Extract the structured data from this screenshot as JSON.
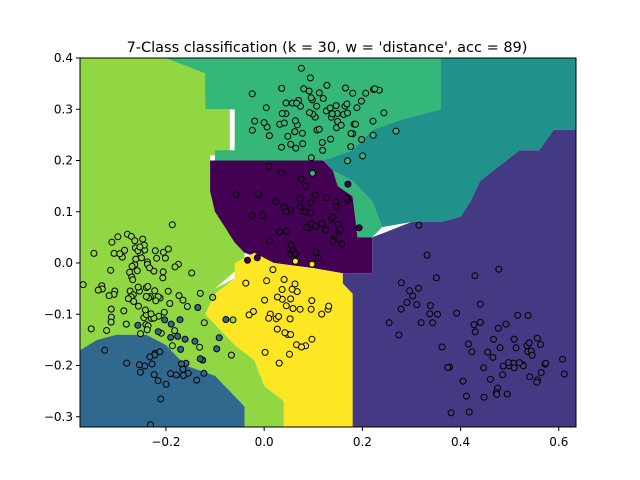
{
  "chart_data": {
    "type": "scatter",
    "title": "7-Class classification (k = 30, w = 'distance', acc = 89)",
    "xlabel": "",
    "ylabel": "",
    "xlim": [
      -0.375,
      0.635
    ],
    "ylim": [
      -0.32,
      0.4
    ],
    "x_ticks": [
      -0.2,
      0.0,
      0.2,
      0.4,
      0.6
    ],
    "x_tick_labels": [
      "−0.2",
      "0.0",
      "0.2",
      "0.4",
      "0.6"
    ],
    "y_ticks": [
      -0.3,
      -0.2,
      -0.1,
      0.0,
      0.1,
      0.2,
      0.3,
      0.4
    ],
    "y_tick_labels": [
      "−0.3",
      "−0.2",
      "−0.1",
      "0.0",
      "0.1",
      "0.2",
      "0.3",
      "0.4"
    ],
    "grid": false,
    "class_colors": [
      "#440154",
      "#443983",
      "#31688e",
      "#21918c",
      "#35b779",
      "#90d743",
      "#fde725"
    ],
    "decision_regions": [
      {
        "class": 5,
        "polygon": [
          [
            -0.375,
            0.4
          ],
          [
            0.01,
            0.4
          ],
          [
            0.01,
            0.34
          ],
          [
            -0.1,
            0.34
          ],
          [
            -0.1,
            0.32
          ],
          [
            -0.17,
            0.32
          ],
          [
            -0.2,
            0.38
          ],
          [
            -0.12,
            0.38
          ],
          [
            -0.12,
            0.3
          ],
          [
            -0.07,
            0.3
          ],
          [
            -0.07,
            0.21
          ],
          [
            -0.11,
            0.21
          ],
          [
            -0.11,
            0.14
          ],
          [
            -0.07,
            0.14
          ],
          [
            -0.07,
            0.07
          ],
          [
            -0.06,
            0.07
          ],
          [
            -0.06,
            0.04
          ],
          [
            -0.04,
            0.04
          ],
          [
            -0.04,
            0.0
          ],
          [
            -0.1,
            -0.05
          ],
          [
            -0.2,
            -0.07
          ],
          [
            -0.24,
            -0.12
          ],
          [
            -0.34,
            -0.16
          ],
          [
            -0.375,
            -0.16
          ]
        ]
      },
      {
        "class": 4,
        "polygon": [
          [
            -0.2,
            0.4
          ],
          [
            0.36,
            0.4
          ],
          [
            0.36,
            0.3
          ],
          [
            0.28,
            0.28
          ],
          [
            0.22,
            0.26
          ],
          [
            0.18,
            0.22
          ],
          [
            0.12,
            0.2
          ],
          [
            -0.1,
            0.2
          ],
          [
            -0.1,
            0.22
          ],
          [
            -0.06,
            0.22
          ],
          [
            -0.06,
            0.3
          ],
          [
            -0.12,
            0.3
          ],
          [
            -0.12,
            0.37
          ]
        ]
      },
      {
        "class": 3,
        "polygon": [
          [
            0.36,
            0.4
          ],
          [
            0.635,
            0.4
          ],
          [
            0.635,
            0.26
          ],
          [
            0.59,
            0.26
          ],
          [
            0.56,
            0.22
          ],
          [
            0.52,
            0.22
          ],
          [
            0.44,
            0.16
          ],
          [
            0.42,
            0.12
          ],
          [
            0.4,
            0.09
          ],
          [
            0.36,
            0.08
          ],
          [
            0.3,
            0.08
          ],
          [
            0.24,
            0.07
          ],
          [
            0.22,
            0.12
          ],
          [
            0.18,
            0.16
          ],
          [
            0.14,
            0.18
          ],
          [
            0.12,
            0.2
          ],
          [
            0.18,
            0.22
          ],
          [
            0.22,
            0.26
          ],
          [
            0.28,
            0.28
          ],
          [
            0.36,
            0.3
          ]
        ]
      },
      {
        "class": 4,
        "polygon": [
          [
            0.14,
            0.18
          ],
          [
            0.18,
            0.16
          ],
          [
            0.22,
            0.12
          ],
          [
            0.24,
            0.07
          ],
          [
            0.22,
            0.05
          ],
          [
            0.19,
            0.05
          ],
          [
            0.18,
            0.13
          ],
          [
            0.15,
            0.15
          ]
        ]
      },
      {
        "class": 0,
        "polygon": [
          [
            -0.11,
            0.2
          ],
          [
            0.12,
            0.2
          ],
          [
            0.14,
            0.18
          ],
          [
            0.15,
            0.15
          ],
          [
            0.18,
            0.13
          ],
          [
            0.19,
            0.05
          ],
          [
            0.22,
            0.05
          ],
          [
            0.22,
            -0.02
          ],
          [
            0.16,
            -0.02
          ],
          [
            0.1,
            -0.01
          ],
          [
            0.02,
            0.0
          ],
          [
            -0.04,
            0.02
          ],
          [
            -0.06,
            0.04
          ],
          [
            -0.08,
            0.07
          ],
          [
            -0.1,
            0.1
          ],
          [
            -0.11,
            0.14
          ]
        ]
      },
      {
        "class": 1,
        "polygon": [
          [
            0.22,
            0.05
          ],
          [
            0.3,
            0.08
          ],
          [
            0.36,
            0.08
          ],
          [
            0.4,
            0.09
          ],
          [
            0.42,
            0.12
          ],
          [
            0.44,
            0.16
          ],
          [
            0.52,
            0.22
          ],
          [
            0.56,
            0.22
          ],
          [
            0.59,
            0.26
          ],
          [
            0.635,
            0.26
          ],
          [
            0.635,
            -0.32
          ],
          [
            0.18,
            -0.32
          ],
          [
            0.18,
            -0.06
          ],
          [
            0.16,
            -0.04
          ],
          [
            0.16,
            -0.02
          ],
          [
            0.22,
            -0.02
          ]
        ]
      },
      {
        "class": 6,
        "polygon": [
          [
            -0.06,
            0.0
          ],
          [
            -0.02,
            0.02
          ],
          [
            0.02,
            0.0
          ],
          [
            0.1,
            -0.01
          ],
          [
            0.16,
            -0.02
          ],
          [
            0.16,
            -0.04
          ],
          [
            0.18,
            -0.06
          ],
          [
            0.18,
            -0.32
          ],
          [
            0.04,
            -0.32
          ],
          [
            0.04,
            -0.27
          ],
          [
            0.0,
            -0.24
          ],
          [
            -0.02,
            -0.19
          ],
          [
            -0.06,
            -0.16
          ],
          [
            -0.1,
            -0.12
          ],
          [
            -0.12,
            -0.1
          ],
          [
            -0.1,
            -0.06
          ],
          [
            -0.06,
            -0.03
          ]
        ]
      },
      {
        "class": 5,
        "polygon": [
          [
            -0.375,
            -0.16
          ],
          [
            -0.34,
            -0.16
          ],
          [
            -0.24,
            -0.12
          ],
          [
            -0.2,
            -0.07
          ],
          [
            -0.1,
            -0.05
          ],
          [
            -0.06,
            -0.03
          ],
          [
            -0.1,
            -0.06
          ],
          [
            -0.12,
            -0.1
          ],
          [
            -0.1,
            -0.12
          ],
          [
            -0.06,
            -0.16
          ],
          [
            -0.02,
            -0.19
          ],
          [
            0.0,
            -0.24
          ],
          [
            0.04,
            -0.27
          ],
          [
            0.04,
            -0.32
          ],
          [
            -0.04,
            -0.32
          ],
          [
            -0.04,
            -0.28
          ],
          [
            -0.1,
            -0.22
          ],
          [
            -0.16,
            -0.2
          ],
          [
            -0.2,
            -0.16
          ],
          [
            -0.24,
            -0.14
          ],
          [
            -0.3,
            -0.14
          ],
          [
            -0.34,
            -0.15
          ],
          [
            -0.375,
            -0.17
          ]
        ]
      },
      {
        "class": 2,
        "polygon": [
          [
            -0.375,
            -0.17
          ],
          [
            -0.34,
            -0.15
          ],
          [
            -0.3,
            -0.14
          ],
          [
            -0.24,
            -0.14
          ],
          [
            -0.2,
            -0.16
          ],
          [
            -0.16,
            -0.2
          ],
          [
            -0.1,
            -0.22
          ],
          [
            -0.04,
            -0.28
          ],
          [
            -0.04,
            -0.32
          ],
          [
            -0.375,
            -0.32
          ]
        ]
      }
    ],
    "clusters": [
      {
        "class": 4,
        "cx": 0.12,
        "cy": 0.28,
        "sx": 0.07,
        "sy": 0.04,
        "n": 80
      },
      {
        "class": 0,
        "cx": 0.08,
        "cy": 0.08,
        "sx": 0.06,
        "sy": 0.05,
        "n": 50
      },
      {
        "class": 5,
        "cx": -0.26,
        "cy": 0.0,
        "sx": 0.05,
        "sy": 0.05,
        "n": 60
      },
      {
        "class": 5,
        "cx": -0.23,
        "cy": -0.1,
        "sx": 0.06,
        "sy": 0.04,
        "n": 40
      },
      {
        "class": 2,
        "cx": -0.18,
        "cy": -0.18,
        "sx": 0.05,
        "sy": 0.04,
        "n": 40
      },
      {
        "class": 6,
        "cx": 0.05,
        "cy": -0.09,
        "sx": 0.05,
        "sy": 0.04,
        "n": 40
      },
      {
        "class": 1,
        "cx": 0.5,
        "cy": -0.2,
        "sx": 0.06,
        "sy": 0.05,
        "n": 50
      },
      {
        "class": 1,
        "cx": 0.35,
        "cy": -0.09,
        "sx": 0.08,
        "sy": 0.05,
        "n": 25
      }
    ]
  }
}
